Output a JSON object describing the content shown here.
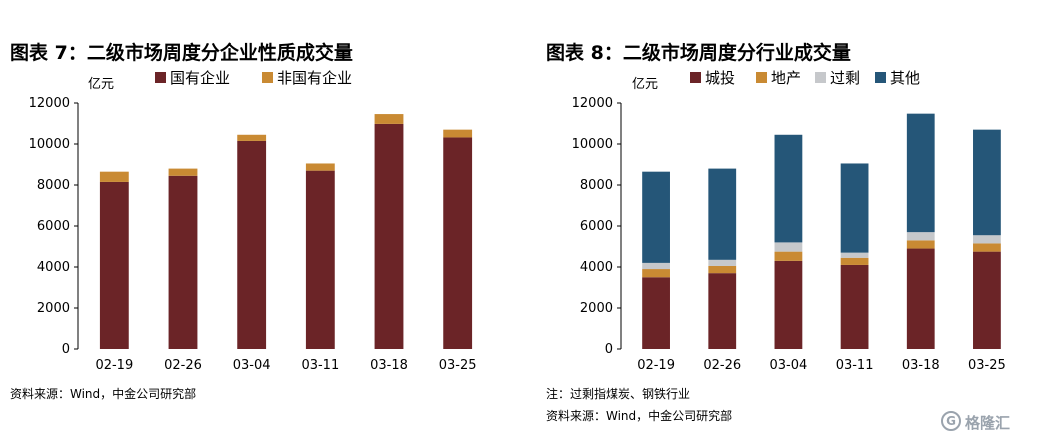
{
  "chart_data": [
    {
      "type": "bar",
      "stacked": true,
      "title": "图表 7：二级市场周度分企业性质成交量",
      "unit": "亿元",
      "categories": [
        "02-19",
        "02-26",
        "03-04",
        "03-11",
        "03-18",
        "03-25"
      ],
      "series": [
        {
          "name": "国有企业",
          "color": "#6b2427",
          "values": [
            8150,
            8450,
            10150,
            8700,
            10980,
            10320
          ]
        },
        {
          "name": "非国有企业",
          "color": "#c98a33",
          "values": [
            500,
            350,
            300,
            350,
            480,
            380
          ]
        }
      ],
      "ylim": [
        0,
        12000
      ],
      "yticks": [
        0,
        2000,
        4000,
        6000,
        8000,
        10000,
        12000
      ],
      "grid": false,
      "legend_position": "top",
      "footnotes": [
        "资料来源：Wind，中金公司研究部"
      ]
    },
    {
      "type": "bar",
      "stacked": true,
      "title": "图表 8：二级市场周度分行业成交量",
      "unit": "亿元",
      "categories": [
        "02-19",
        "02-26",
        "03-04",
        "03-11",
        "03-18",
        "03-25"
      ],
      "series": [
        {
          "name": "城投",
          "color": "#6b2427",
          "values": [
            3500,
            3700,
            4300,
            4100,
            4900,
            4750
          ]
        },
        {
          "name": "地产",
          "color": "#c98a33",
          "values": [
            400,
            350,
            450,
            350,
            400,
            400
          ]
        },
        {
          "name": "过剩",
          "color": "#c6c8cb",
          "values": [
            300,
            300,
            450,
            250,
            400,
            400
          ]
        },
        {
          "name": "其他",
          "color": "#255678",
          "values": [
            4450,
            4450,
            5250,
            4350,
            5780,
            5150
          ]
        }
      ],
      "ylim": [
        0,
        12000
      ],
      "yticks": [
        0,
        2000,
        4000,
        6000,
        8000,
        10000,
        12000
      ],
      "grid": false,
      "legend_position": "top",
      "footnotes": [
        "注：过剩指煤炭、钢铁行业",
        "资料来源：Wind，中金公司研究部"
      ]
    }
  ],
  "watermark": {
    "symbol": "G",
    "text": "格隆汇"
  }
}
